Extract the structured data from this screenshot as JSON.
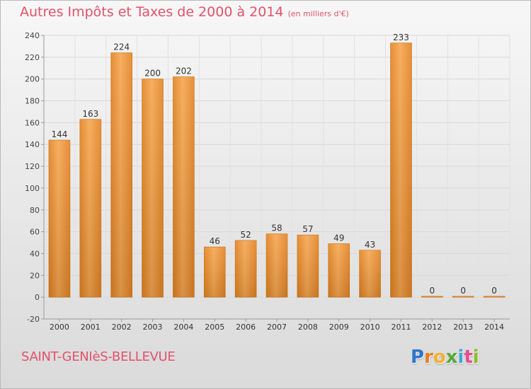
{
  "title": "Autres Impôts et Taxes de 2000 à 2014",
  "subtitle": "(en milliers d'€)",
  "municipality": "SAINT-GENIèS-BELLEVUE",
  "brand": {
    "letters": [
      "P",
      "r",
      "o",
      "x",
      "i",
      "t",
      "i"
    ],
    "colors": [
      "#2f77c8",
      "#e67e22",
      "#f2b134",
      "#57a83a",
      "#3da9d6",
      "#e74c8b",
      "#8dbb2e"
    ]
  },
  "colors": {
    "bar_fill": "#f39b3f",
    "bar_edge": "#d2771e",
    "axis": "#9a9a9a",
    "grid": "#d8d8d8",
    "title": "#e2526a"
  },
  "chart_data": {
    "type": "bar",
    "categories": [
      "2000",
      "2001",
      "2002",
      "2003",
      "2004",
      "2005",
      "2006",
      "2007",
      "2008",
      "2009",
      "2010",
      "2011",
      "2012",
      "2013",
      "2014"
    ],
    "values": [
      144,
      163,
      224,
      200,
      202,
      46,
      52,
      58,
      57,
      49,
      43,
      233,
      0,
      0,
      0
    ],
    "value_labels": [
      "144",
      "163",
      "224",
      "200",
      "202",
      "46",
      "52",
      "58",
      "57",
      "49",
      "43",
      "233",
      "0",
      "0",
      "0"
    ],
    "title": "Autres Impôts et Taxes de 2000 à 2014",
    "xlabel": "",
    "ylabel": "",
    "ylim": [
      -20,
      240
    ],
    "yticks": [
      -20,
      0,
      20,
      40,
      60,
      80,
      100,
      120,
      140,
      160,
      180,
      200,
      220,
      240
    ],
    "ytick_labels": [
      "-20",
      "0",
      "20",
      "40",
      "60",
      "80",
      "100",
      "120",
      "140",
      "160",
      "180",
      "200",
      "220",
      "240"
    ],
    "grid": true
  }
}
